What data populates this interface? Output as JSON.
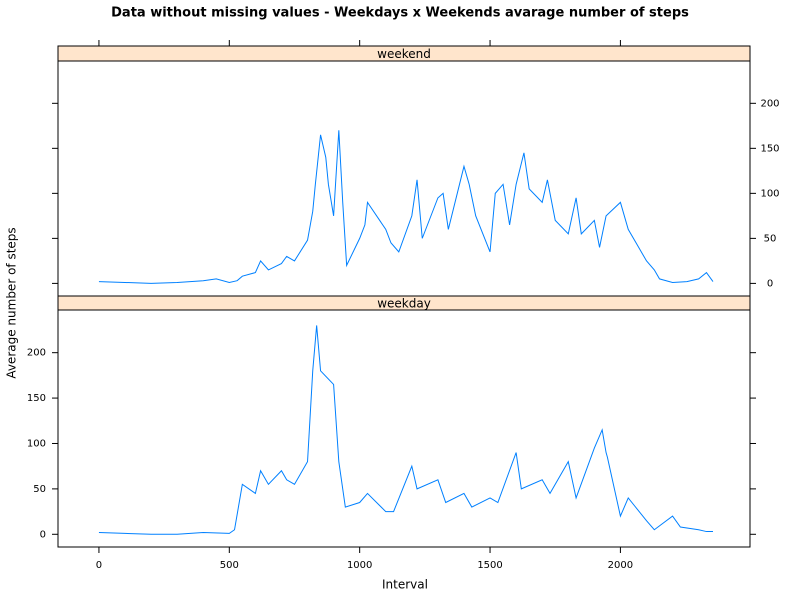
{
  "title": "Data without missing values - Weekdays x Weekends avarage number of steps",
  "x_label": "Interval",
  "y_label": "Average number of steps",
  "chart_data": [
    {
      "type": "line",
      "strip": "weekend",
      "color": "#0080ff",
      "y_label_side": "right",
      "xlim": [
        -157,
        2497
      ],
      "ylim": [
        -14,
        247
      ],
      "xticks": [
        0,
        500,
        1000,
        1500,
        2000
      ],
      "yticks": [
        0,
        50,
        100,
        150,
        200
      ],
      "x": [
        0,
        100,
        200,
        300,
        400,
        450,
        500,
        530,
        550,
        600,
        620,
        650,
        700,
        720,
        750,
        800,
        820,
        830,
        850,
        870,
        880,
        900,
        920,
        935,
        950,
        1000,
        1020,
        1030,
        1100,
        1120,
        1150,
        1200,
        1220,
        1240,
        1300,
        1320,
        1340,
        1400,
        1420,
        1445,
        1500,
        1520,
        1550,
        1575,
        1600,
        1630,
        1650,
        1700,
        1720,
        1750,
        1800,
        1830,
        1850,
        1900,
        1920,
        1945,
        2000,
        2030,
        2100,
        2130,
        2150,
        2200,
        2255,
        2300,
        2330,
        2355
      ],
      "values": [
        2,
        1,
        0,
        1,
        3,
        5,
        1,
        3,
        8,
        12,
        25,
        15,
        22,
        30,
        25,
        48,
        80,
        110,
        165,
        140,
        110,
        75,
        170,
        90,
        20,
        50,
        65,
        90,
        60,
        45,
        35,
        75,
        115,
        50,
        95,
        100,
        60,
        130,
        110,
        75,
        35,
        100,
        110,
        65,
        110,
        145,
        105,
        90,
        115,
        70,
        55,
        95,
        55,
        70,
        40,
        75,
        90,
        60,
        25,
        15,
        5,
        1,
        2,
        5,
        12,
        2
      ]
    },
    {
      "type": "line",
      "strip": "weekday",
      "color": "#0080ff",
      "y_label_side": "left",
      "xlim": [
        -157,
        2497
      ],
      "ylim": [
        -14,
        247
      ],
      "xticks": [
        0,
        500,
        1000,
        1500,
        2000
      ],
      "yticks": [
        0,
        50,
        100,
        150,
        200
      ],
      "x": [
        0,
        100,
        200,
        300,
        400,
        500,
        520,
        550,
        600,
        620,
        650,
        700,
        720,
        750,
        800,
        820,
        835,
        850,
        900,
        920,
        945,
        1000,
        1030,
        1100,
        1130,
        1200,
        1220,
        1300,
        1330,
        1400,
        1430,
        1500,
        1530,
        1600,
        1620,
        1700,
        1730,
        1800,
        1830,
        1900,
        1930,
        1945,
        1950,
        2000,
        2030,
        2100,
        2130,
        2200,
        2230,
        2300,
        2330,
        2355
      ],
      "values": [
        2,
        1,
        0,
        0,
        2,
        1,
        5,
        55,
        45,
        70,
        55,
        70,
        60,
        55,
        80,
        180,
        230,
        180,
        165,
        80,
        30,
        35,
        45,
        25,
        25,
        75,
        50,
        60,
        35,
        45,
        30,
        40,
        35,
        90,
        50,
        60,
        45,
        80,
        40,
        95,
        115,
        90,
        85,
        20,
        40,
        15,
        5,
        20,
        8,
        5,
        3,
        3
      ]
    }
  ]
}
